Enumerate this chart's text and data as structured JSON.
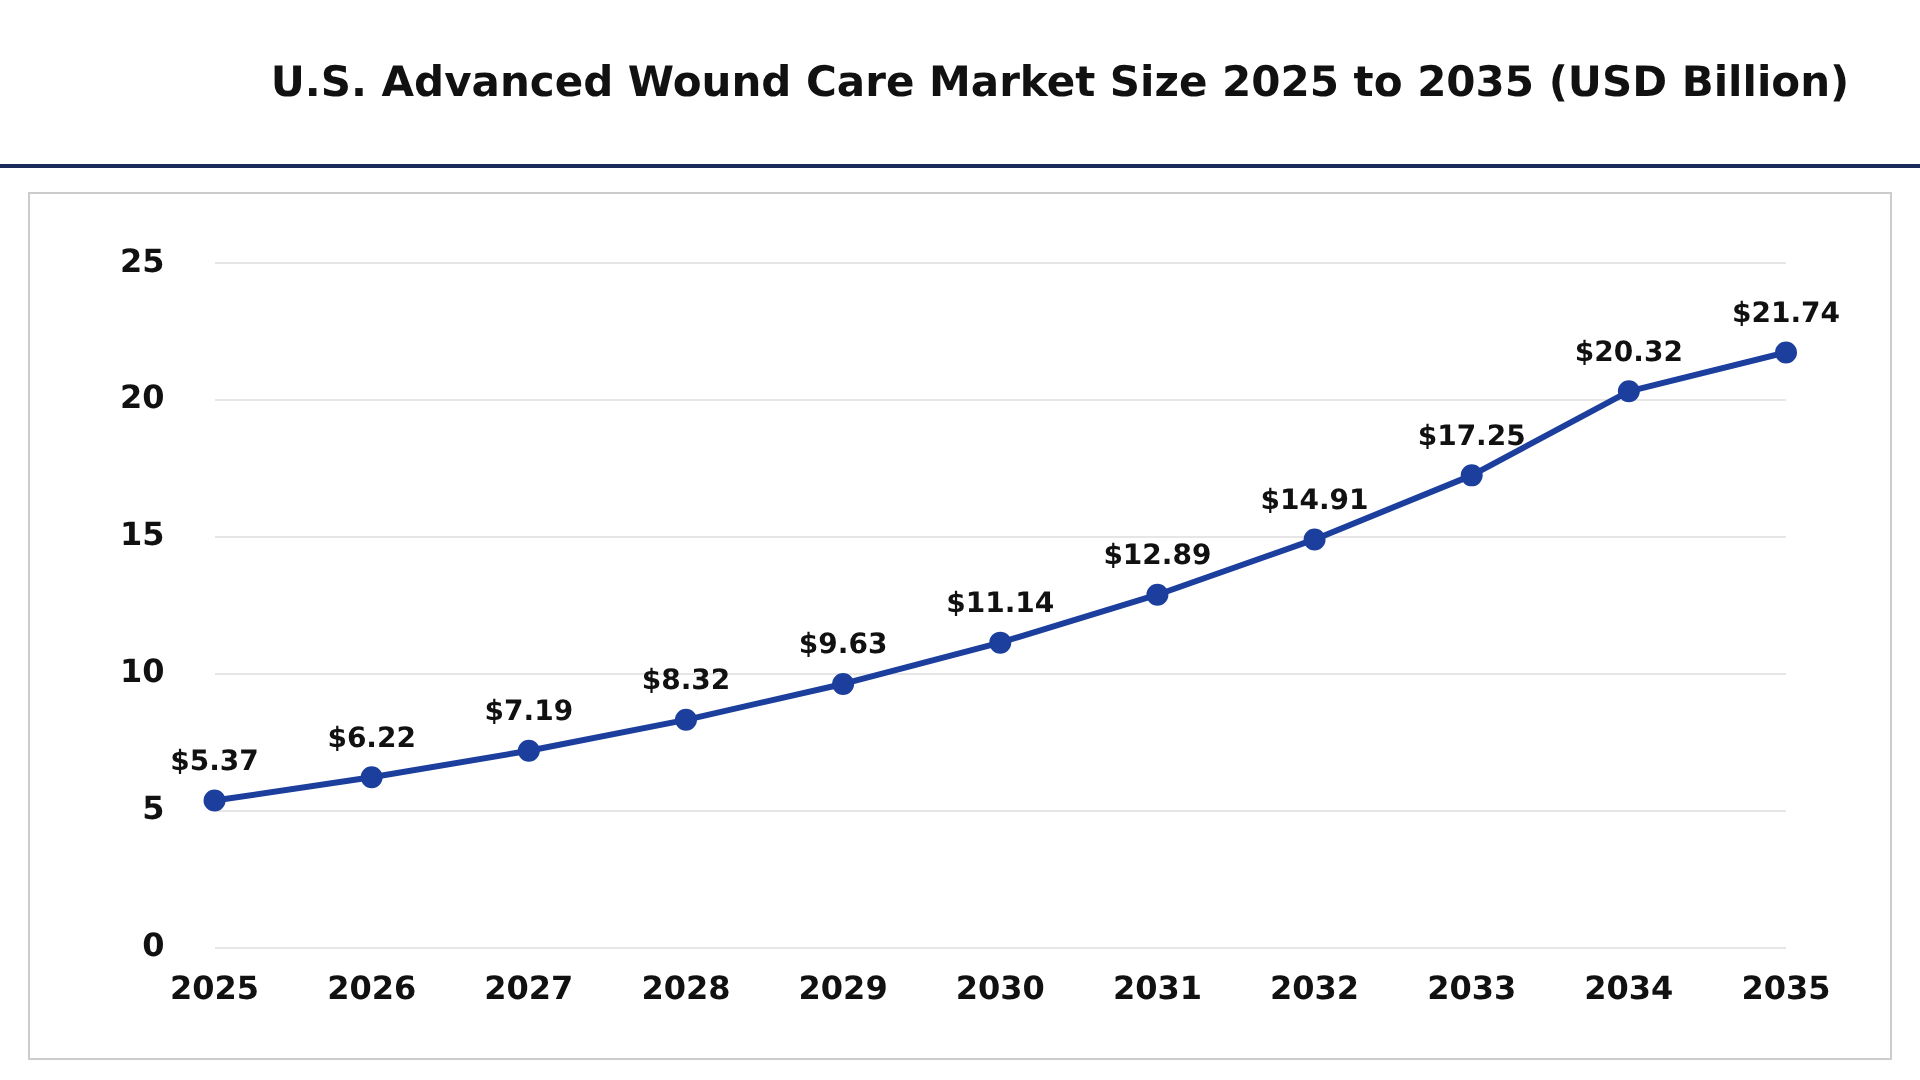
{
  "chart_data": {
    "type": "line",
    "title": "U.S. Advanced Wound Care Market Size 2025 to 2035 (USD Billion)",
    "categories": [
      "2025",
      "2026",
      "2027",
      "2028",
      "2029",
      "2030",
      "2031",
      "2032",
      "2033",
      "2034",
      "2035"
    ],
    "series": [
      {
        "color": "#1c3f9e",
        "values": [
          5.37,
          6.22,
          7.19,
          8.32,
          9.63,
          11.14,
          12.89,
          14.91,
          17.25,
          20.32,
          21.74
        ],
        "value_labels": [
          "$5.37",
          "$6.22",
          "$7.19",
          "$8.32",
          "$9.63",
          "$11.14",
          "$12.89",
          "$14.91",
          "$17.25",
          "$20.32",
          "$21.74"
        ]
      }
    ],
    "ylim": [
      0,
      25
    ],
    "yticks": [
      0,
      5,
      10,
      15,
      20,
      25
    ],
    "grid": "y",
    "legend": false,
    "marker": "circle",
    "line_style": "solid"
  }
}
